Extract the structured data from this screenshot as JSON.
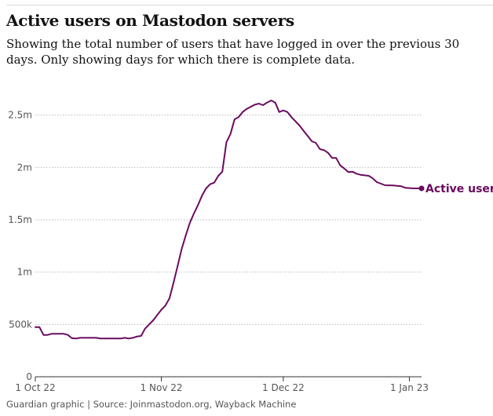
{
  "title": "Active users on Mastodon servers",
  "subtitle": "Showing the total number of users that have logged in over the previous 30 days. Only showing days for which there is complete data.",
  "footer": "Guardian graphic | Source: Joinmastodon.org, Wayback Machine",
  "colors": {
    "series": "#6b0a60",
    "text": "#121212",
    "grid": "#bbbbbb",
    "axis": "#333333",
    "muted": "#555555"
  },
  "chart_data": {
    "type": "line",
    "xlim": [
      "2022-10-01",
      "2023-01-04"
    ],
    "ylim": [
      0,
      2700000
    ],
    "y_ticks": [
      {
        "value": 0,
        "label": "0"
      },
      {
        "value": 500000,
        "label": "500k"
      },
      {
        "value": 1000000,
        "label": "1m"
      },
      {
        "value": 1500000,
        "label": "1.5m"
      },
      {
        "value": 2000000,
        "label": "2m"
      },
      {
        "value": 2500000,
        "label": "2.5m"
      }
    ],
    "x_ticks": [
      {
        "value": "2022-10-01",
        "label": "1 Oct 22"
      },
      {
        "value": "2022-11-01",
        "label": "1 Nov 22"
      },
      {
        "value": "2022-12-01",
        "label": "1 Dec 22"
      },
      {
        "value": "2023-01-01",
        "label": "1 Jan 23"
      }
    ],
    "grid": true,
    "series": [
      {
        "name": "Active users",
        "color": "#6b0a60",
        "points": [
          [
            "2022-10-01",
            475000
          ],
          [
            "2022-10-02",
            475000
          ],
          [
            "2022-10-03",
            400000
          ],
          [
            "2022-10-04",
            400000
          ],
          [
            "2022-10-05",
            410000
          ],
          [
            "2022-10-08",
            410000
          ],
          [
            "2022-10-09",
            400000
          ],
          [
            "2022-10-10",
            368000
          ],
          [
            "2022-10-11",
            365000
          ],
          [
            "2022-10-12",
            372000
          ],
          [
            "2022-10-15",
            372000
          ],
          [
            "2022-10-16",
            372000
          ],
          [
            "2022-10-17",
            365000
          ],
          [
            "2022-10-20",
            365000
          ],
          [
            "2022-10-22",
            365000
          ],
          [
            "2022-10-23",
            372000
          ],
          [
            "2022-10-24",
            365000
          ],
          [
            "2022-10-25",
            372000
          ],
          [
            "2022-10-26",
            385000
          ],
          [
            "2022-10-27",
            390000
          ],
          [
            "2022-10-28",
            460000
          ],
          [
            "2022-10-29",
            500000
          ],
          [
            "2022-10-30",
            540000
          ],
          [
            "2022-10-31",
            590000
          ],
          [
            "2022-11-01",
            640000
          ],
          [
            "2022-11-02",
            680000
          ],
          [
            "2022-11-03",
            750000
          ],
          [
            "2022-11-04",
            900000
          ],
          [
            "2022-11-05",
            1060000
          ],
          [
            "2022-11-06",
            1220000
          ],
          [
            "2022-11-07",
            1350000
          ],
          [
            "2022-11-08",
            1470000
          ],
          [
            "2022-11-09",
            1560000
          ],
          [
            "2022-11-10",
            1640000
          ],
          [
            "2022-11-11",
            1730000
          ],
          [
            "2022-11-12",
            1800000
          ],
          [
            "2022-11-13",
            1840000
          ],
          [
            "2022-11-14",
            1855000
          ],
          [
            "2022-11-15",
            1920000
          ],
          [
            "2022-11-16",
            1960000
          ],
          [
            "2022-11-17",
            2240000
          ],
          [
            "2022-11-18",
            2320000
          ],
          [
            "2022-11-19",
            2460000
          ],
          [
            "2022-11-20",
            2480000
          ],
          [
            "2022-11-21",
            2530000
          ],
          [
            "2022-11-22",
            2560000
          ],
          [
            "2022-11-23",
            2580000
          ],
          [
            "2022-11-24",
            2600000
          ],
          [
            "2022-11-25",
            2610000
          ],
          [
            "2022-11-26",
            2595000
          ],
          [
            "2022-11-27",
            2620000
          ],
          [
            "2022-11-28",
            2640000
          ],
          [
            "2022-11-29",
            2620000
          ],
          [
            "2022-11-30",
            2530000
          ],
          [
            "2022-12-01",
            2545000
          ],
          [
            "2022-12-02",
            2530000
          ],
          [
            "2022-12-03",
            2480000
          ],
          [
            "2022-12-04",
            2440000
          ],
          [
            "2022-12-05",
            2400000
          ],
          [
            "2022-12-06",
            2350000
          ],
          [
            "2022-12-07",
            2300000
          ],
          [
            "2022-12-08",
            2250000
          ],
          [
            "2022-12-09",
            2235000
          ],
          [
            "2022-12-10",
            2175000
          ],
          [
            "2022-12-11",
            2165000
          ],
          [
            "2022-12-12",
            2140000
          ],
          [
            "2022-12-13",
            2090000
          ],
          [
            "2022-12-14",
            2090000
          ],
          [
            "2022-12-15",
            2020000
          ],
          [
            "2022-12-16",
            1990000
          ],
          [
            "2022-12-17",
            1955000
          ],
          [
            "2022-12-18",
            1960000
          ],
          [
            "2022-12-19",
            1940000
          ],
          [
            "2022-12-20",
            1930000
          ],
          [
            "2022-12-22",
            1920000
          ],
          [
            "2022-12-23",
            1895000
          ],
          [
            "2022-12-24",
            1860000
          ],
          [
            "2022-12-25",
            1845000
          ],
          [
            "2022-12-26",
            1830000
          ],
          [
            "2022-12-28",
            1828000
          ],
          [
            "2022-12-30",
            1820000
          ],
          [
            "2022-12-31",
            1805000
          ],
          [
            "2023-01-02",
            1800000
          ],
          [
            "2023-01-04",
            1800000
          ]
        ],
        "end_label": "Active users"
      }
    ]
  }
}
